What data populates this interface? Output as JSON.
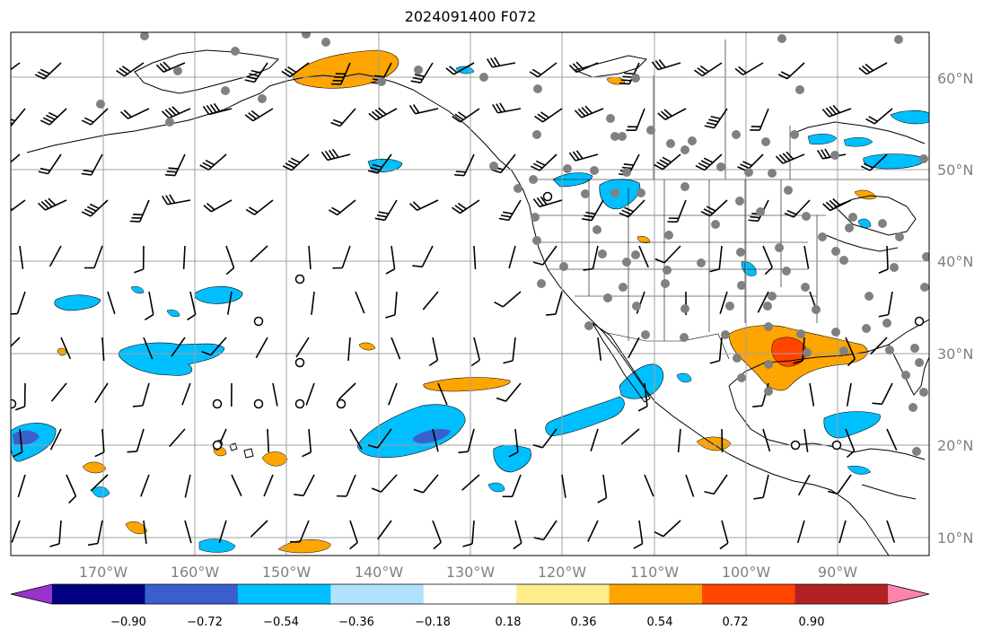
{
  "title": "2024091400 F072",
  "latitude_labels": [
    "60°N",
    "50°N",
    "40°N",
    "30°N",
    "20°N",
    "10°N"
  ],
  "longitude_labels": [
    "170°W",
    "160°W",
    "150°W",
    "140°W",
    "130°W",
    "120°W",
    "110°W",
    "100°W",
    "90°W"
  ],
  "colorbar": {
    "tick_labels": [
      "−0.90",
      "−0.72",
      "−0.54",
      "−0.36",
      "−0.18",
      "0.18",
      "0.36",
      "0.54",
      "0.72",
      "0.90"
    ],
    "colors": [
      "#9932cc",
      "#000080",
      "#3a5fcd",
      "#00bfff",
      "#b0e2ff",
      "#ffffff",
      "#ffec8b",
      "#ffa500",
      "#ff4500",
      "#b22222",
      "#ff82ab"
    ]
  },
  "colors": {
    "grid": "#a0a0a0",
    "coastline": "#000000",
    "calm_circle": "#000000",
    "station_dot": "#808080"
  },
  "icons": {
    "wind-barb-icon": "wind barb",
    "calm-wind-icon": "open circle",
    "station-dot-icon": "grey dot"
  }
}
